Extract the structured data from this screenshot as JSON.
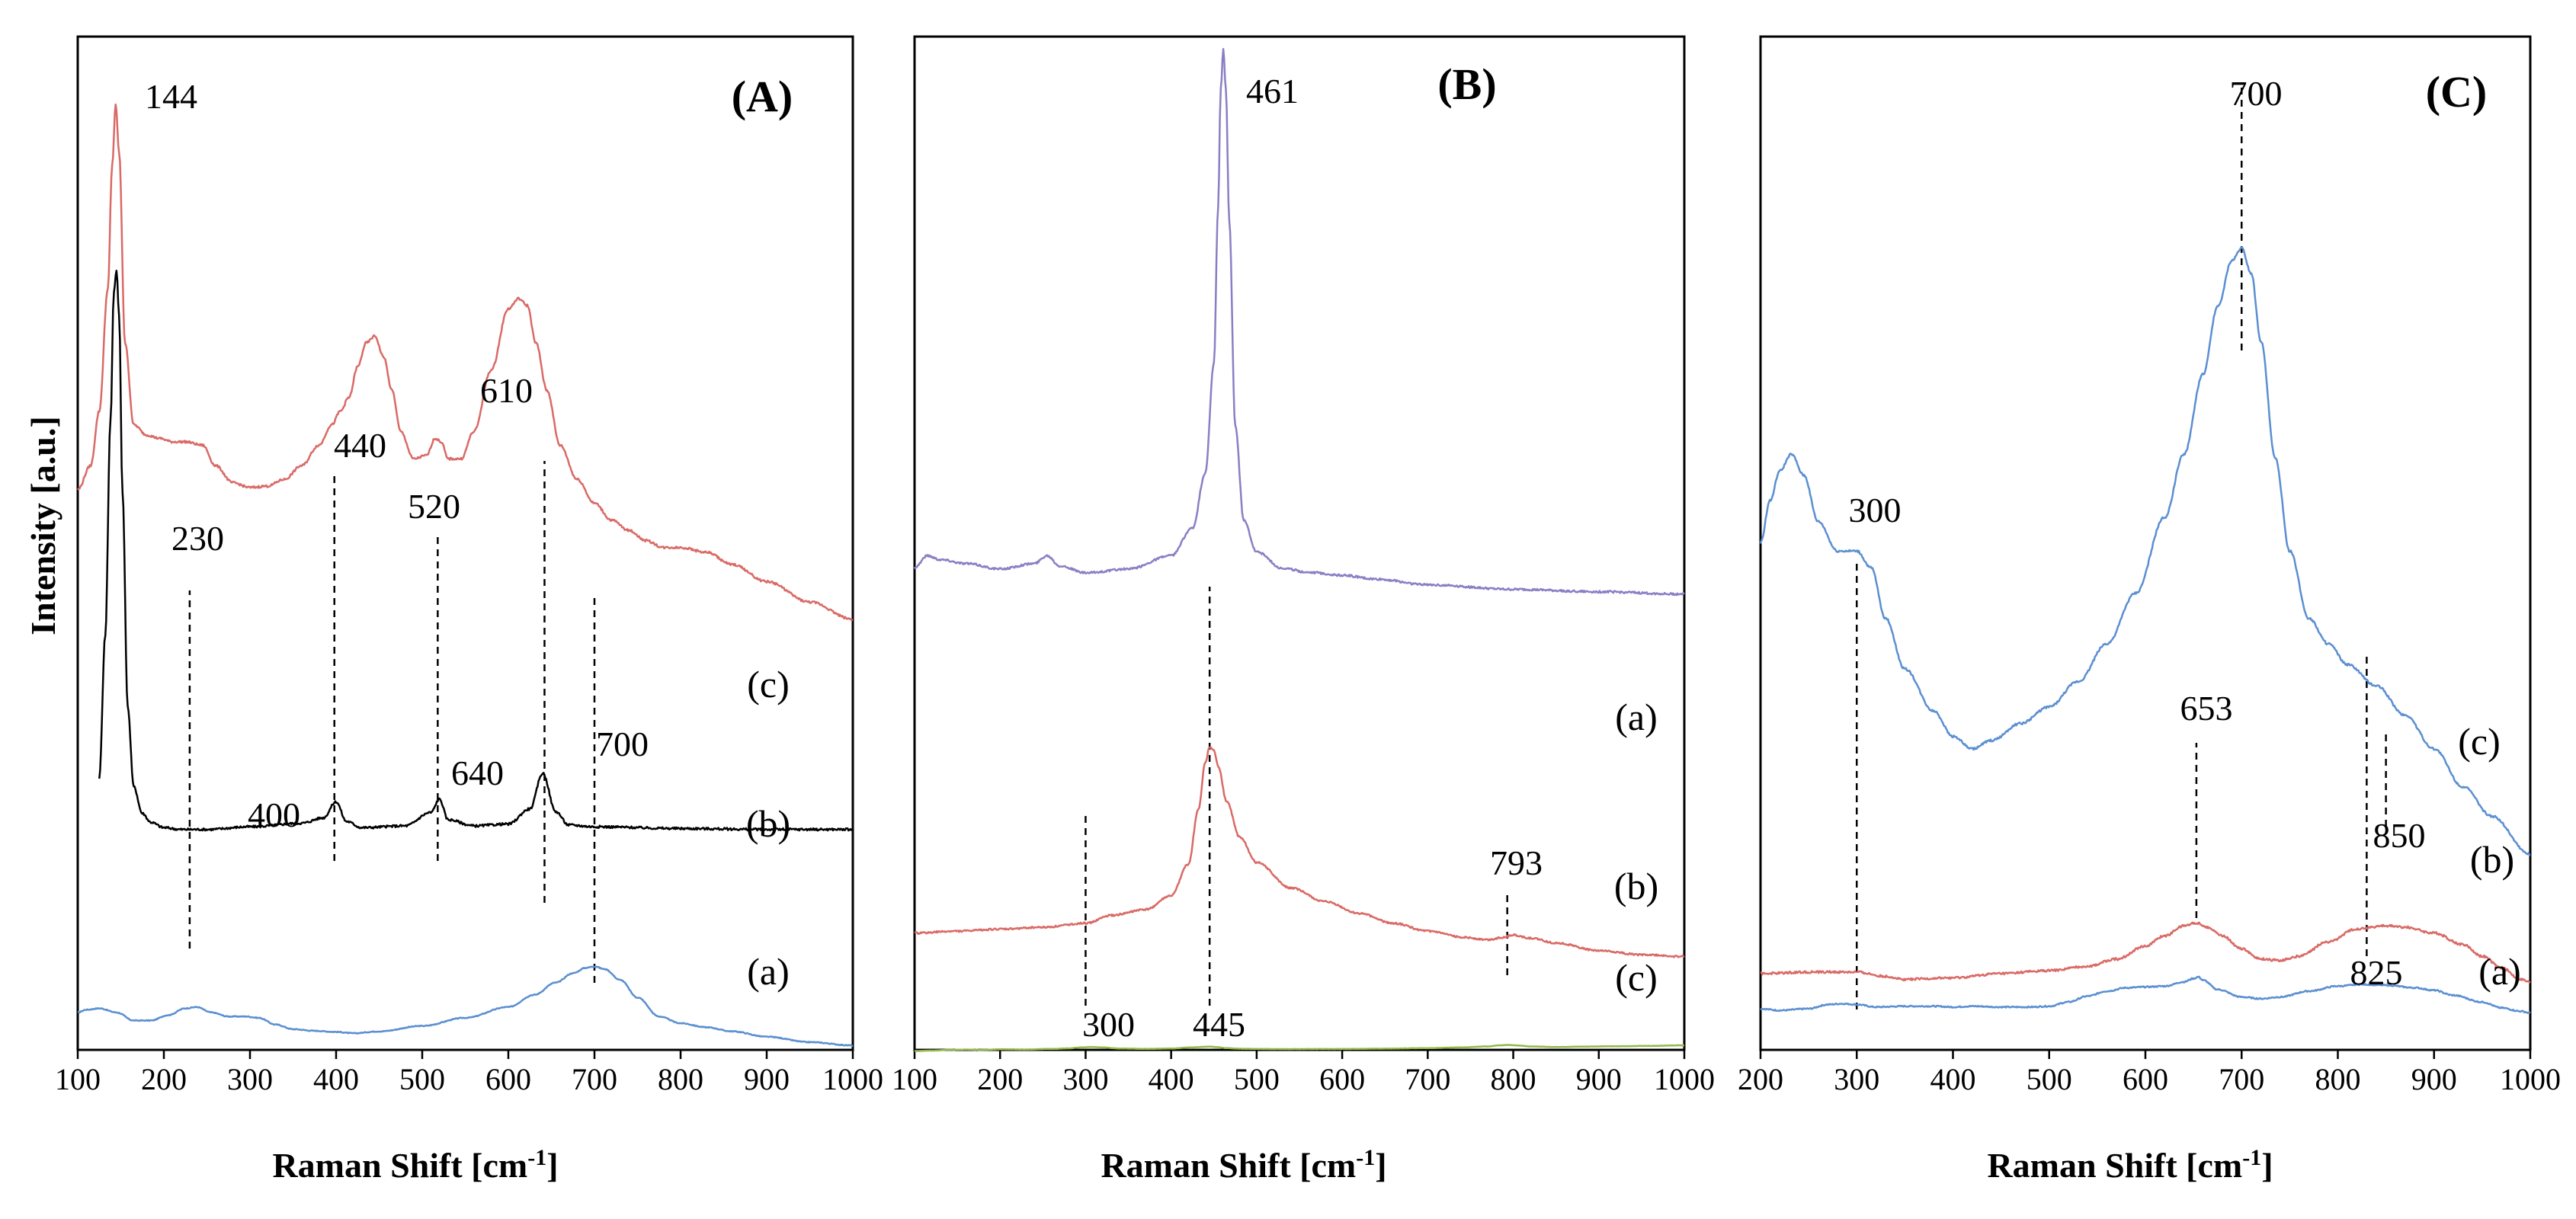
{
  "figure": {
    "ylabel": "Intensity [a.u.]"
  },
  "chart_data": [
    {
      "type": "line",
      "title": "(A)",
      "xlabel": "Raman Shift [cm-1]",
      "xlabel_main": "Raman Shift [cm",
      "xlabel_sup": "-1",
      "xlabel_end": "]",
      "ylabel": "Intensity [a.u.]",
      "xlim": [
        100,
        1000
      ],
      "ylim": [
        0,
        100
      ],
      "xticks": [
        100,
        200,
        300,
        400,
        500,
        600,
        700,
        800,
        900,
        1000
      ],
      "series": [
        {
          "name": "(a)",
          "color": "#5b8fd1",
          "noise": 0.15,
          "x": [
            100,
            110,
            125,
            145,
            165,
            185,
            205,
            225,
            238,
            255,
            275,
            295,
            310,
            330,
            350,
            375,
            400,
            420,
            450,
            500,
            550,
            600,
            630,
            655,
            675,
            690,
            700,
            712,
            730,
            750,
            775,
            800,
            830,
            860,
            900,
            950,
            1000
          ],
          "y": [
            13,
            14,
            14.5,
            13,
            10,
            10,
            12,
            14.5,
            15,
            13,
            11.5,
            11.5,
            11,
            8.5,
            6.8,
            6.2,
            5.8,
            5.3,
            6,
            8,
            11,
            15,
            19.5,
            24,
            27.5,
            29.5,
            30,
            29,
            25,
            18.5,
            11.5,
            9,
            7.5,
            6,
            4,
            2,
            0.8
          ]
        },
        {
          "name": "(b)",
          "color": "#000000",
          "noise": 0.12,
          "x": [
            125,
            132,
            138,
            142,
            145,
            148,
            152,
            158,
            165,
            175,
            185,
            200,
            220,
            250,
            300,
            360,
            385,
            400,
            412,
            430,
            480,
            510,
            520,
            530,
            560,
            600,
            625,
            640,
            655,
            670,
            700,
            800,
            900,
            1000
          ],
          "y": [
            26,
            42,
            66,
            80.5,
            83,
            78,
            58,
            34,
            25,
            22,
            21,
            20.4,
            20.2,
            20.2,
            20.5,
            20.9,
            21.5,
            23.3,
            21.1,
            20.4,
            20.6,
            22.1,
            23.6,
            21.3,
            20.6,
            20.8,
            22.5,
            26.5,
            22.2,
            20.7,
            20.5,
            20.3,
            20.2,
            20.2
          ]
        },
        {
          "name": "(c)",
          "color": "#d96a66",
          "noise": 0.15,
          "x": [
            100,
            115,
            125,
            135,
            140,
            144,
            148,
            155,
            165,
            180,
            195,
            210,
            225,
            245,
            260,
            280,
            300,
            320,
            340,
            360,
            380,
            395,
            405,
            415,
            425,
            435,
            445,
            455,
            465,
            475,
            490,
            505,
            515,
            522,
            530,
            545,
            560,
            580,
            600,
            612,
            622,
            632,
            645,
            660,
            680,
            700,
            720,
            740,
            760,
            780,
            800,
            830,
            860,
            900,
            950,
            1000
          ],
          "y": [
            40.5,
            44,
            52,
            70,
            88,
            97,
            90,
            62,
            50,
            48.5,
            48,
            47.5,
            47.5,
            47,
            44,
            41.5,
            40.8,
            41,
            42,
            44,
            47,
            50,
            52,
            54,
            58.5,
            62,
            63,
            60,
            55,
            49,
            45,
            45.5,
            48,
            47.5,
            45,
            45,
            49,
            58,
            67,
            68.5,
            67.5,
            62,
            55,
            47,
            42,
            38.5,
            36,
            34.5,
            33,
            32,
            32,
            31.3,
            29.5,
            27,
            24,
            21.5
          ]
        }
      ],
      "annotations": [
        "144",
        "230",
        "440",
        "520",
        "610",
        "400",
        "640",
        "700"
      ],
      "dashed_lines": [
        230,
        398,
        518,
        642,
        700
      ],
      "trace_labels": [
        "(c)",
        "(b)",
        "(a)"
      ]
    },
    {
      "type": "line",
      "title": "(B)",
      "xlabel": "Raman Shift [cm-1]",
      "xlabel_main": "Raman Shift [cm",
      "xlabel_sup": "-1",
      "xlabel_end": "]",
      "xlim": [
        100,
        1000
      ],
      "ylim": [
        0,
        100
      ],
      "xticks": [
        100,
        200,
        300,
        400,
        500,
        600,
        700,
        800,
        900,
        1000
      ],
      "series": [
        {
          "name": "(a)",
          "color": "#8a7fc4",
          "noise": 0.12,
          "x": [
            100,
            115,
            130,
            160,
            200,
            240,
            255,
            270,
            300,
            350,
            400,
            425,
            440,
            450,
            455,
            458,
            461,
            464,
            468,
            475,
            485,
            500,
            530,
            560,
            600,
            640,
            700,
            800,
            900,
            1000
          ],
          "y": [
            34,
            35.5,
            35,
            34.5,
            33.8,
            34.5,
            35.5,
            34.2,
            33.3,
            33.8,
            35.5,
            39,
            46,
            60,
            80,
            95,
            100,
            95,
            78,
            52,
            40,
            36,
            33.9,
            33.4,
            33,
            32.5,
            31.8,
            31.2,
            30.9,
            30.6
          ]
        },
        {
          "name": "(b)",
          "color": "#d96a66",
          "noise": 0.2,
          "x": [
            100,
            150,
            200,
            250,
            300,
            330,
            370,
            400,
            420,
            432,
            440,
            445,
            450,
            455,
            465,
            480,
            500,
            540,
            580,
            620,
            660,
            700,
            740,
            770,
            790,
            800,
            820,
            850,
            900,
            950,
            1000
          ],
          "y": [
            18.5,
            19,
            19.5,
            20,
            21,
            23,
            24.5,
            28,
            36,
            50,
            62,
            66,
            65,
            61,
            52,
            43,
            36.5,
            30,
            26.5,
            23.5,
            21,
            19,
            17.5,
            16.8,
            17.5,
            18,
            17.2,
            16,
            14,
            13,
            12.5
          ]
        },
        {
          "name": "(c)",
          "color": "#96b84a",
          "noise": 0.3,
          "x": [
            100,
            120,
            140,
            160,
            180,
            200,
            230,
            260,
            280,
            295,
            305,
            318,
            340,
            370,
            400,
            425,
            440,
            445,
            452,
            465,
            480,
            500,
            540,
            600,
            650,
            700,
            740,
            770,
            785,
            795,
            805,
            820,
            850,
            880,
            920,
            960,
            1000
          ],
          "y": [
            1,
            2,
            4,
            4.8,
            4,
            5.5,
            5,
            6.5,
            8,
            10.5,
            11.5,
            10.5,
            7.5,
            6.5,
            7.5,
            10.5,
            12,
            12.5,
            11.5,
            8.5,
            7,
            6.3,
            6,
            6.3,
            7.2,
            8.5,
            10.5,
            13,
            16,
            17,
            15.5,
            13,
            11.5,
            12.5,
            13.5,
            14.5,
            16
          ]
        }
      ],
      "annotations": [
        "461",
        "793",
        "300",
        "445"
      ],
      "dashed_lines": [
        300,
        445,
        793
      ],
      "trace_labels": [
        "(a)",
        "(b)",
        "(c)"
      ]
    },
    {
      "type": "line",
      "title": "(C)",
      "xlabel": "Raman Shift [cm-1]",
      "xlabel_main": "Raman Shift [cm",
      "xlabel_sup": "-1",
      "xlabel_end": "]",
      "xlim": [
        200,
        1000
      ],
      "ylim": [
        0,
        100
      ],
      "xticks": [
        200,
        300,
        400,
        500,
        600,
        700,
        800,
        900,
        1000
      ],
      "series": [
        {
          "name": "(a)",
          "color": "#5b8fd1",
          "noise": 0.35,
          "x": [
            200,
            220,
            250,
            270,
            285,
            300,
            320,
            350,
            380,
            400,
            420,
            450,
            480,
            500,
            520,
            540,
            560,
            580,
            600,
            620,
            640,
            650,
            655,
            660,
            675,
            700,
            720,
            740,
            770,
            800,
            825,
            850,
            880,
            900,
            920,
            950,
            970,
            990,
            1000
          ],
          "y": [
            5,
            4,
            5,
            7.5,
            8,
            7.5,
            6,
            6.5,
            6.5,
            6,
            6.5,
            6,
            6,
            6.5,
            9,
            12.5,
            15.5,
            17.5,
            18,
            18.5,
            21,
            23,
            24,
            22,
            16.5,
            12,
            11,
            12,
            15.5,
            18.5,
            19.5,
            19,
            17.5,
            16,
            13,
            9,
            5.5,
            3.5,
            2.5
          ]
        },
        {
          "name": "(b)",
          "color": "#d96a66",
          "noise": 0.35,
          "x": [
            200,
            250,
            300,
            330,
            350,
            400,
            450,
            500,
            540,
            570,
            600,
            620,
            640,
            653,
            665,
            680,
            700,
            720,
            740,
            760,
            790,
            820,
            850,
            870,
            900,
            930,
            950,
            970,
            990,
            1000
          ],
          "y": [
            19,
            19.5,
            19.5,
            18,
            17,
            17.5,
            19,
            20,
            21.5,
            24,
            28.5,
            32,
            35.5,
            36.5,
            35,
            32,
            27.5,
            24,
            23.5,
            25,
            30,
            34.5,
            35.5,
            35,
            33,
            29,
            25,
            21,
            17,
            16
          ]
        },
        {
          "name": "(c)",
          "color": "#5b8fd1",
          "noise": 0.12,
          "x": [
            200,
            210,
            220,
            232,
            245,
            260,
            280,
            300,
            315,
            330,
            350,
            380,
            400,
            420,
            440,
            470,
            500,
            530,
            560,
            590,
            620,
            640,
            660,
            675,
            690,
            700,
            710,
            720,
            735,
            750,
            770,
            790,
            810,
            840,
            870,
            900,
            930,
            960,
            1000
          ],
          "y": [
            55,
            60,
            63.5,
            65.5,
            63,
            57.5,
            54,
            54,
            52,
            46,
            40,
            35,
            32,
            30.5,
            31.5,
            33.5,
            35.5,
            38.5,
            43,
            49,
            58,
            65.5,
            75,
            83,
            88.5,
            90,
            87,
            79,
            65,
            54,
            46,
            43,
            40.5,
            38,
            34.5,
            30.5,
            26,
            22.5,
            18
          ]
        }
      ],
      "annotations": [
        "700",
        "300",
        "653",
        "850",
        "825"
      ],
      "dashed_lines": [
        700,
        300,
        653,
        830,
        850
      ],
      "trace_labels": [
        "(c)",
        "(b)",
        "(a)"
      ]
    }
  ]
}
